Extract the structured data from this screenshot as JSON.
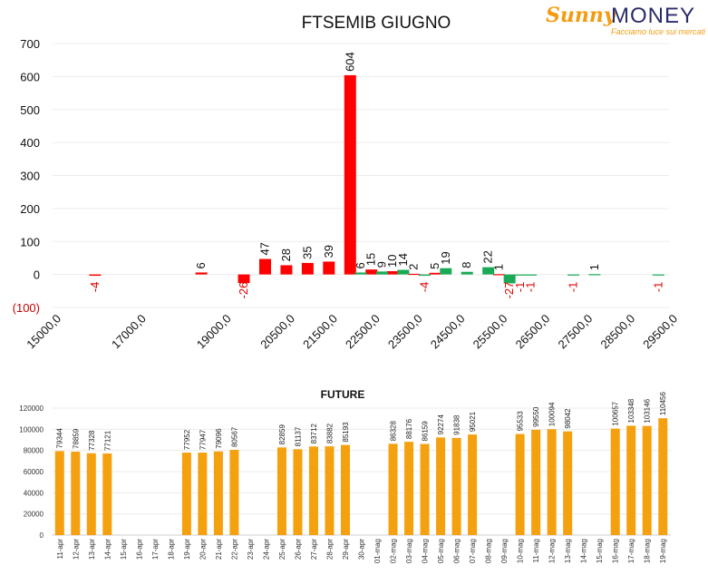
{
  "logo": {
    "brand_left": "Sunny",
    "brand_right": "MONEY",
    "tagline": "Facciamo luce sui mercati"
  },
  "chart_data": [
    {
      "type": "bar",
      "title": "FTSEMIB GIUGNO",
      "ylim": [
        -100,
        700
      ],
      "yticks": [
        "(100)",
        "0",
        "100",
        "200",
        "300",
        "400",
        "500",
        "600",
        "700"
      ],
      "grid": true,
      "xticks": [
        "15000,0",
        "17000,0",
        "19000,0",
        "20500,0",
        "21500,0",
        "22500,0",
        "23500,0",
        "24500,0",
        "25500,0",
        "26500,0",
        "27500,0",
        "28500,0",
        "29500,0"
      ],
      "series": [
        {
          "color": "#ff0000",
          "points": [
            {
              "x": 16000,
              "y": -4,
              "label": "-4"
            },
            {
              "x": 18500,
              "y": 6,
              "label": "6"
            },
            {
              "x": 19500,
              "y": -26,
              "label": "-26"
            },
            {
              "x": 20000,
              "y": 47,
              "label": "47"
            },
            {
              "x": 20500,
              "y": 28,
              "label": "28"
            },
            {
              "x": 21000,
              "y": 35,
              "label": "35"
            },
            {
              "x": 21500,
              "y": 39,
              "label": "39"
            },
            {
              "x": 22000,
              "y": 604,
              "label": "604"
            },
            {
              "x": 22500,
              "y": 15,
              "label": "15"
            },
            {
              "x": 23000,
              "y": 10,
              "label": "10"
            },
            {
              "x": 23500,
              "y": 2,
              "label": "2"
            },
            {
              "x": 24000,
              "y": 5,
              "label": "5"
            },
            {
              "x": 25500,
              "y": 1,
              "label": "1"
            }
          ]
        },
        {
          "color": "#1aaa55",
          "points": [
            {
              "x": 22250,
              "y": 6,
              "label": "6"
            },
            {
              "x": 22750,
              "y": 9,
              "label": "9"
            },
            {
              "x": 23250,
              "y": 14,
              "label": "14"
            },
            {
              "x": 23750,
              "y": -4,
              "label": "-4"
            },
            {
              "x": 24250,
              "y": 19,
              "label": "19"
            },
            {
              "x": 24750,
              "y": 8,
              "label": "8"
            },
            {
              "x": 25250,
              "y": 22,
              "label": "22"
            },
            {
              "x": 25750,
              "y": -27,
              "label": "-27"
            },
            {
              "x": 26000,
              "y": -1,
              "label": "-1"
            },
            {
              "x": 26250,
              "y": -1,
              "label": "-1"
            },
            {
              "x": 27250,
              "y": -1,
              "label": "-1"
            },
            {
              "x": 27750,
              "y": 1,
              "label": "1"
            },
            {
              "x": 29250,
              "y": -1,
              "label": "-1"
            }
          ]
        }
      ]
    },
    {
      "type": "bar",
      "title": "FUTURE",
      "ylim": [
        0,
        120000
      ],
      "yticks": [
        "0",
        "20000",
        "40000",
        "60000",
        "80000",
        "100000",
        "120000"
      ],
      "color": "#f5a00f",
      "categories": [
        "11-apr",
        "12-apr",
        "13-apr",
        "14-apr",
        "15-apr",
        "16-apr",
        "17-apr",
        "18-apr",
        "19-apr",
        "20-apr",
        "21-apr",
        "22-apr",
        "23-apr",
        "24-apr",
        "25-apr",
        "26-apr",
        "27-apr",
        "28-apr",
        "29-apr",
        "30-apr",
        "01-mag",
        "02-mag",
        "03-mag",
        "04-mag",
        "05-mag",
        "06-mag",
        "07-mag",
        "08-mag",
        "09-mag",
        "10-mag",
        "11-mag",
        "12-mag",
        "13-mag",
        "14-mag",
        "15-mag",
        "16-mag",
        "17-mag",
        "18-mag",
        "19-mag"
      ],
      "values": [
        79344,
        78859,
        77328,
        77121,
        null,
        null,
        null,
        null,
        77952,
        77947,
        79096,
        80567,
        null,
        null,
        82859,
        81137,
        83712,
        83882,
        85193,
        null,
        null,
        86328,
        88176,
        86159,
        92274,
        91838,
        95021,
        null,
        null,
        95533,
        99550,
        100094,
        98042,
        null,
        null,
        100657,
        103348,
        103146,
        110456
      ],
      "labels": [
        "79344",
        "78859",
        "77328",
        "77121",
        "",
        "",
        "",
        "",
        "77952",
        "77947",
        "79096",
        "80567",
        "",
        "",
        "82859",
        "81137",
        "83712",
        "83882",
        "85193",
        "",
        "",
        "86328",
        "88176",
        "86159",
        "92274",
        "91838",
        "95021",
        "",
        "",
        "95533",
        "99550",
        "100094",
        "98042",
        "",
        "",
        "100657",
        "103348",
        "103146",
        "110456"
      ]
    }
  ]
}
